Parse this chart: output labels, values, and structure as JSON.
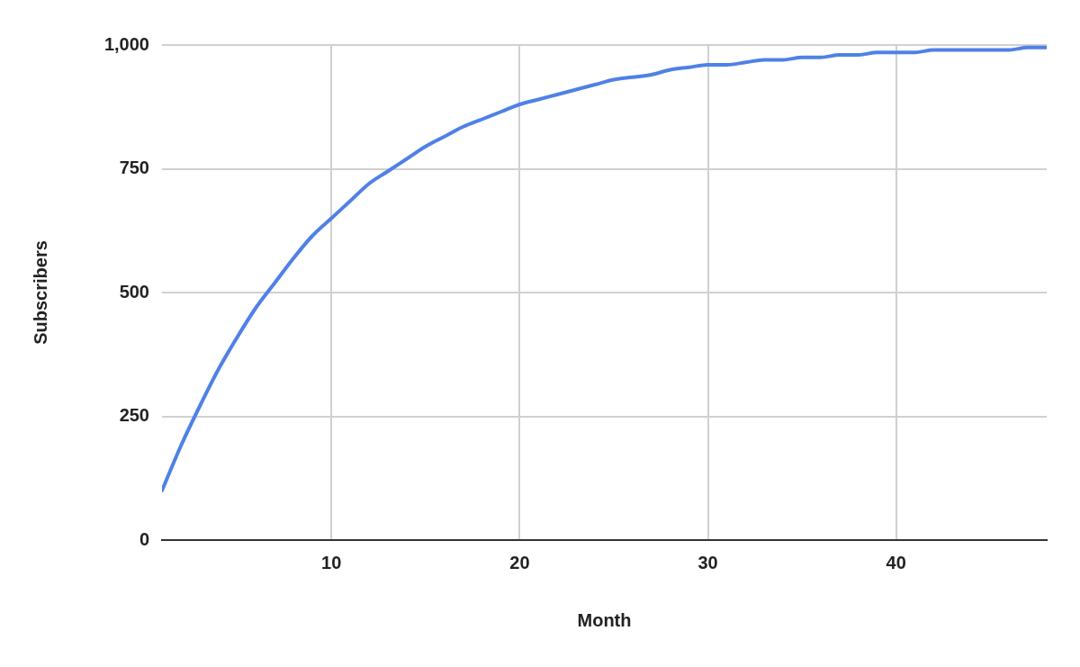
{
  "chart_data": {
    "type": "line",
    "xlabel": "Month",
    "ylabel": "Subscribers",
    "x": [
      1,
      2,
      3,
      4,
      5,
      6,
      7,
      8,
      9,
      10,
      11,
      12,
      13,
      14,
      15,
      16,
      17,
      18,
      19,
      20,
      21,
      22,
      23,
      24,
      25,
      26,
      27,
      28,
      29,
      30,
      31,
      32,
      33,
      34,
      35,
      36,
      37,
      38,
      39,
      40,
      41,
      42,
      43,
      44,
      45,
      46,
      47,
      48
    ],
    "series": [
      {
        "color": "#4f81e6",
        "values": [
          100,
          190,
          270,
          345,
          410,
          470,
          520,
          570,
          615,
          650,
          685,
          720,
          745,
          770,
          795,
          815,
          835,
          850,
          865,
          880,
          890,
          900,
          910,
          920,
          930,
          935,
          940,
          950,
          955,
          960,
          960,
          965,
          970,
          970,
          975,
          975,
          980,
          980,
          985,
          985,
          985,
          990,
          990,
          990,
          990,
          990,
          995,
          995
        ]
      }
    ],
    "xlim": [
      1,
      48
    ],
    "xticks": [
      10,
      20,
      30,
      40
    ],
    "ylim": [
      0,
      1000
    ],
    "yticks": [
      0,
      250,
      500,
      750,
      {
        "value": 1000,
        "label": "1,000"
      }
    ],
    "grid": true,
    "marker": "none",
    "line_style": "solid",
    "legend": false
  }
}
